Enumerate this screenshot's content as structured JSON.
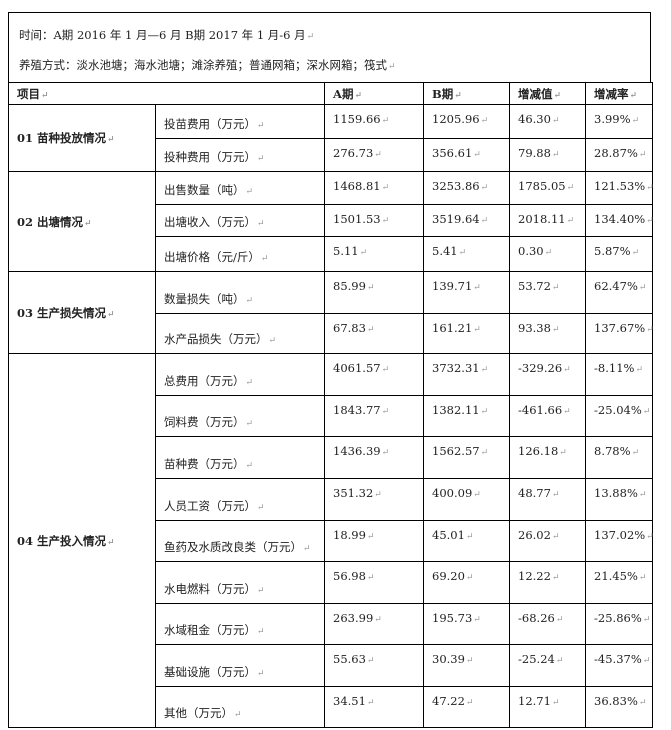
{
  "info": {
    "time": "时间：A期 2016 年 1 月—6 月 B期 2017 年 1 月-6 月",
    "methods": "养殖方式：淡水池塘；海水池塘；滩涂养殖；普通网箱；深水网箱；筏式"
  },
  "headers": [
    "项目",
    "A期",
    "B期",
    "增减值",
    "增减率"
  ],
  "groups": [
    {
      "name": "01 苗种投放情况",
      "rows": [
        {
          "item": "投苗费用（万元）",
          "a": "1159.66",
          "b": "1205.96",
          "diff": "46.30",
          "rate": "3.99%"
        },
        {
          "item": "投种费用（万元）",
          "a": "276.73",
          "b": "356.61",
          "diff": "79.88",
          "rate": "28.87%"
        }
      ]
    },
    {
      "name": "02 出塘情况",
      "rows": [
        {
          "item": "出售数量（吨）",
          "a": "1468.81",
          "b": "3253.86",
          "diff": "1785.05",
          "rate": "121.53%"
        },
        {
          "item": "出塘收入（万元）",
          "a": "1501.53",
          "b": "3519.64",
          "diff": "2018.11",
          "rate": "134.40%"
        },
        {
          "item": "出塘价格（元/斤）",
          "a": "5.11",
          "b": "5.41",
          "diff": "0.30",
          "rate": "5.87%"
        }
      ]
    },
    {
      "name": "03 生产损失情况",
      "rows": [
        {
          "item": "数量损失（吨）",
          "a": "85.99",
          "b": "139.71",
          "diff": "53.72",
          "rate": "62.47%"
        },
        {
          "item": "水产品损失（万元）",
          "a": "67.83",
          "b": "161.21",
          "diff": "93.38",
          "rate": "137.67%"
        }
      ]
    },
    {
      "name": "04 生产投入情况",
      "rows": [
        {
          "item": "总费用（万元）",
          "a": "4061.57",
          "b": "3732.31",
          "diff": "-329.26",
          "rate": "-8.11%"
        },
        {
          "item": "饲料费（万元）",
          "a": "1843.77",
          "b": "1382.11",
          "diff": "-461.66",
          "rate": "-25.04%"
        },
        {
          "item": "苗种费（万元）",
          "a": "1436.39",
          "b": "1562.57",
          "diff": "126.18",
          "rate": "8.78%"
        },
        {
          "item": "人员工资（万元）",
          "a": "351.32",
          "b": "400.09",
          "diff": "48.77",
          "rate": "13.88%"
        },
        {
          "item": "鱼药及水质改良类（万元）",
          "a": "18.99",
          "b": "45.01",
          "diff": "26.02",
          "rate": "137.02%"
        },
        {
          "item": "水电燃料（万元）",
          "a": "56.98",
          "b": "69.20",
          "diff": "12.22",
          "rate": "21.45%"
        },
        {
          "item": "水域租金（万元）",
          "a": "263.99",
          "b": "195.73",
          "diff": "-68.26",
          "rate": "-25.86%"
        },
        {
          "item": "基础设施（万元）",
          "a": "55.63",
          "b": "30.39",
          "diff": "-25.24",
          "rate": "-45.37%"
        },
        {
          "item": "其他（万元）",
          "a": "34.51",
          "b": "47.22",
          "diff": "12.71",
          "rate": "36.83%"
        }
      ]
    }
  ]
}
